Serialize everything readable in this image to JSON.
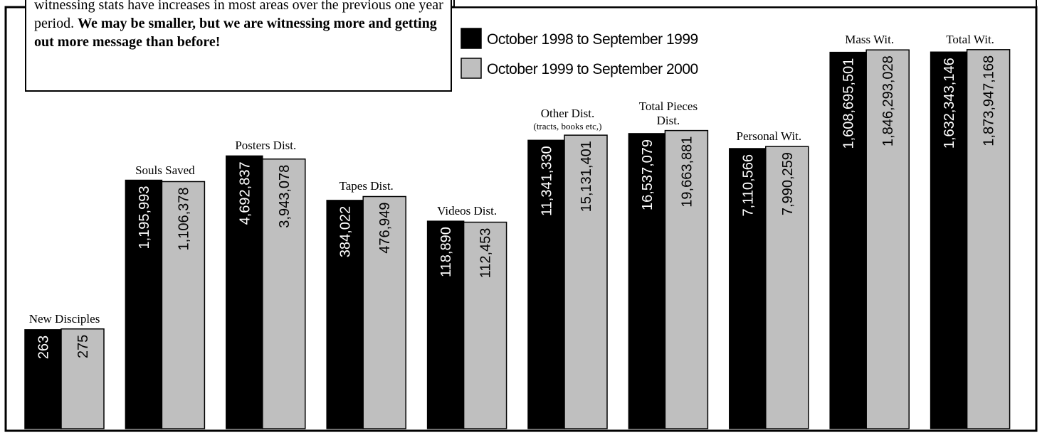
{
  "chart_data": {
    "type": "bar",
    "note": {
      "text": "witnessing stats have increases in most areas over the previous one year period. ",
      "bold": "We may be smaller, but we are witnessing more and getting out more message than before!"
    },
    "categories": [
      "New Disciples",
      "Souls Saved",
      "Posters Dist.",
      "Tapes Dist.",
      "Videos Dist.",
      "Other Dist.",
      "Total Pieces Dist.",
      "Personal Wit.",
      "Mass Wit.",
      "Total Wit."
    ],
    "annotations": [
      {
        "category": 5,
        "text": "(tracts, books etc,)"
      }
    ],
    "series": [
      {
        "name": "October 1998 to September 1999",
        "color": "#000000",
        "values": [
          263,
          1195993,
          4692837,
          384022,
          118890,
          11341330,
          16537079,
          7110566,
          1608695501,
          1632343146
        ],
        "value_labels": [
          "263",
          "1,195,993",
          "4,692,837",
          "384,022",
          "118,890",
          "11,341,330",
          "16,537,079",
          "7,110,566",
          "1,608,695,501",
          "1,632,343,146"
        ]
      },
      {
        "name": "October 1999 to September 2000",
        "color": "#bfbfbf",
        "values": [
          275,
          1106378,
          3943078,
          476949,
          112453,
          15131401,
          19663881,
          7990259,
          1846293028,
          1873947168
        ],
        "value_labels": [
          "275",
          "1,106,378",
          "3,943,078",
          "476,949",
          "112,453",
          "15,131,401",
          "19,663,881",
          "7,990,259",
          "1,846,293,028",
          "1,873,947,168"
        ]
      }
    ],
    "log_scale": true,
    "ylim": [
      1,
      10000000000
    ],
    "legend": "top-center"
  }
}
